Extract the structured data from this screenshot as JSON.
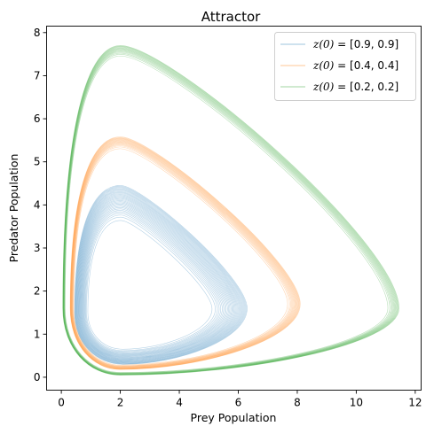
{
  "chart_data": {
    "type": "line",
    "title": "Attractor",
    "xlabel": "Prey Population",
    "ylabel": "Predator Population",
    "xlim": [
      -0.5,
      12.2
    ],
    "ylim": [
      -0.3,
      8.15
    ],
    "xticks": [
      0,
      2,
      4,
      6,
      8,
      10,
      12
    ],
    "yticks": [
      0,
      1,
      2,
      3,
      4,
      5,
      6,
      7,
      8
    ],
    "grid": false,
    "legend_position": "top-right",
    "series": [
      {
        "name": "z(0) = [0.9, 0.9]",
        "legend_var": "z(0)",
        "legend_eq": " = [0.9, 0.9]",
        "color": "#1f77b4",
        "envelope": {
          "x_min": 0.45,
          "x_max": 6.3,
          "y_min": 0.3,
          "y_max": 4.45,
          "x_at_y_max": 2.0,
          "y_at_x_max": 1.6,
          "x_at_y_min": 2.1,
          "y_at_x_min": 1.5,
          "inner_scale": 0.72,
          "loops": 30
        }
      },
      {
        "name": "z(0) = [0.4, 0.4]",
        "legend_var": "z(0)",
        "legend_eq": " = [0.4, 0.4]",
        "color": "#ff7f0e",
        "envelope": {
          "x_min": 0.3,
          "x_max": 8.1,
          "y_min": 0.18,
          "y_max": 5.58,
          "x_at_y_max": 2.0,
          "y_at_x_max": 1.7,
          "x_at_y_min": 2.0,
          "y_at_x_min": 1.6,
          "inner_scale": 0.93,
          "loops": 16
        }
      },
      {
        "name": "z(0) = [0.2, 0.2]",
        "legend_var": "z(0)",
        "legend_eq": " = [0.2, 0.2]",
        "color": "#2ca02c",
        "envelope": {
          "x_min": 0.05,
          "x_max": 11.45,
          "y_min": 0.05,
          "y_max": 7.7,
          "x_at_y_max": 2.0,
          "y_at_x_max": 1.6,
          "x_at_y_min": 2.0,
          "y_at_x_min": 1.6,
          "inner_scale": 0.96,
          "loops": 14
        }
      }
    ]
  }
}
